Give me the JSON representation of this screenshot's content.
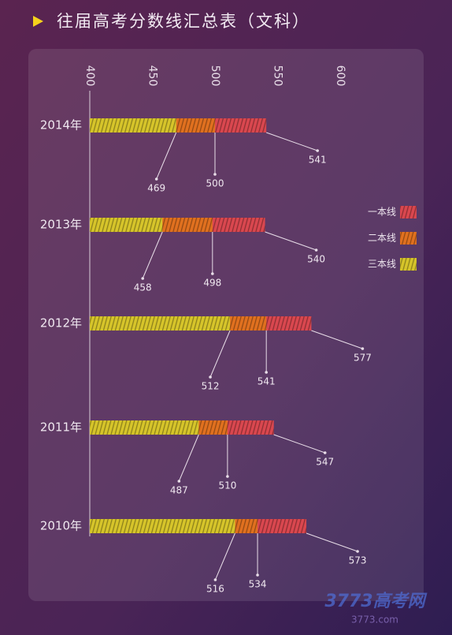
{
  "chart_data": {
    "type": "bar",
    "orientation": "horizontal",
    "title": "往届高考分数线汇总表（文科）",
    "categories": [
      "2014年",
      "2013年",
      "2012年",
      "2011年",
      "2010年"
    ],
    "series": [
      {
        "name": "一本线",
        "color": "#d9474f",
        "values": [
          541,
          540,
          577,
          547,
          573
        ]
      },
      {
        "name": "二本线",
        "color": "#e0701f",
        "values": [
          500,
          498,
          541,
          510,
          534
        ]
      },
      {
        "name": "三本线",
        "color": "#d6c42a",
        "values": [
          469,
          458,
          512,
          487,
          516
        ]
      }
    ],
    "xlim": [
      400,
      600
    ],
    "xticks": [
      400,
      450,
      500,
      550,
      600
    ],
    "watermark": [
      "3773高考网",
      "3773.com"
    ]
  }
}
